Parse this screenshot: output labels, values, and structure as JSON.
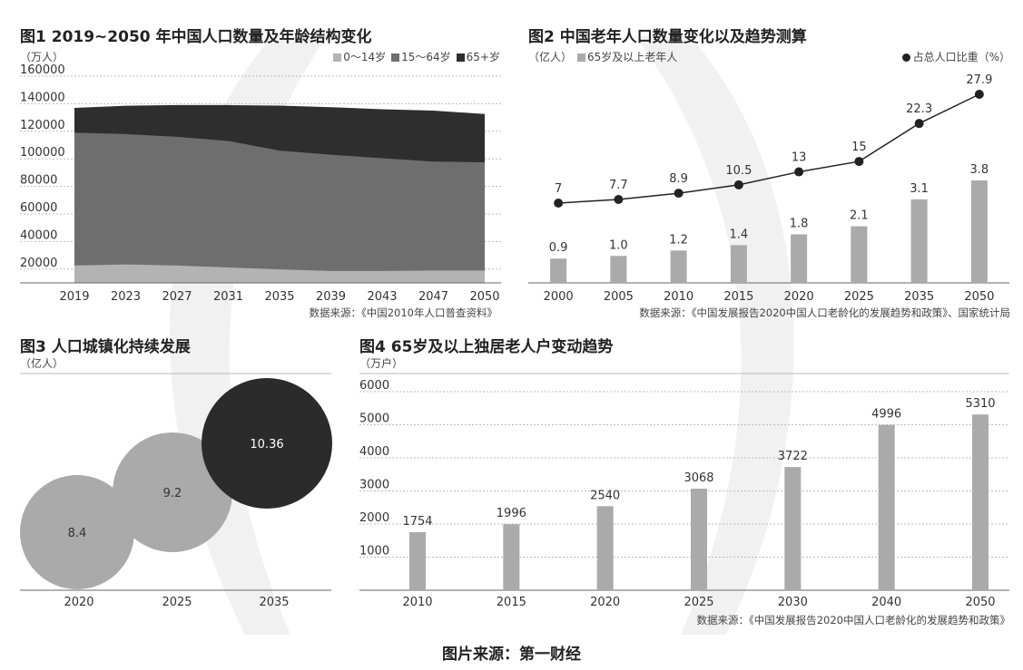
{
  "page": {
    "credit": "图片来源：第一财经"
  },
  "chart_data": [
    {
      "id": "fig1",
      "type": "area",
      "title": "图1 2019~2050 年中国人口数量及年龄结构变化",
      "unit": "（万人）",
      "legend_position": "top-right",
      "x": [
        "2019",
        "2023",
        "2027",
        "2031",
        "2035",
        "2039",
        "2043",
        "2047",
        "2050"
      ],
      "y_ticks": [
        "160000",
        "140000",
        "120000",
        "100000",
        "80000",
        "60000",
        "40000",
        "20000"
      ],
      "ylim": [
        10000,
        160000
      ],
      "series": [
        {
          "name": "0～14岁",
          "color": "#b3b3b3",
          "values": [
            22600,
            23400,
            22600,
            21200,
            19800,
            18600,
            18600,
            19000,
            19000
          ]
        },
        {
          "name": "15～64岁",
          "color": "#6e6e6e",
          "values": [
            119000,
            118000,
            116000,
            113000,
            106000,
            103000,
            100500,
            98000,
            97500
          ]
        },
        {
          "name": "65+岁",
          "color": "#2e2e2e",
          "values": [
            137000,
            138500,
            139000,
            139000,
            138600,
            137500,
            136000,
            135000,
            132500
          ]
        }
      ],
      "source": "数据来源：《中国2010年人口普查资料》"
    },
    {
      "id": "fig2",
      "type": "bar",
      "title": "图2 中国老年人口数量变化以及趋势测算",
      "unit": "（亿人）",
      "legend_bar": "65岁及以上老年人",
      "legend_line": "占总人口比重（%）",
      "legend_position": "top",
      "categories": [
        "2000",
        "2005",
        "2010",
        "2015",
        "2020",
        "2025",
        "2035",
        "2050"
      ],
      "bar_values": [
        0.9,
        1.0,
        1.2,
        1.4,
        1.8,
        2.1,
        3.1,
        3.8
      ],
      "bar_labels": [
        "0.9",
        "1.0",
        "1.2",
        "1.4",
        "1.8",
        "2.1",
        "3.1",
        "3.8"
      ],
      "line_values": [
        7,
        7.7,
        8.9,
        10.5,
        13,
        15,
        22.3,
        27.9
      ],
      "line_labels": [
        "7",
        "7.7",
        "8.9",
        "10.5",
        "13",
        "15",
        "22.3",
        "27.9"
      ],
      "bar_color": "#aaaaaa",
      "line_color": "#222222",
      "source": "数据来源：《中国发展报告2020中国人口老龄化的发展趋势和政策》、国家统计局"
    },
    {
      "id": "fig3",
      "type": "bubble",
      "title": "图3 人口城镇化持续发展",
      "unit": "（亿人）",
      "categories": [
        "2020",
        "2025",
        "2035"
      ],
      "values": [
        8.4,
        9.2,
        10.36
      ],
      "labels": [
        "8.4",
        "9.2",
        "10.36"
      ],
      "colors": [
        "#aaaaaa",
        "#aaaaaa",
        "#2b2b2b"
      ]
    },
    {
      "id": "fig4",
      "type": "bar",
      "title": "图4 65岁及以上独居老人户变动趋势",
      "unit": "（万户）",
      "categories": [
        "2010",
        "2015",
        "2020",
        "2025",
        "2030",
        "2040",
        "2050"
      ],
      "values": [
        1754,
        1996,
        2540,
        3068,
        3722,
        4996,
        5310
      ],
      "labels": [
        "1754",
        "1996",
        "2540",
        "3068",
        "3722",
        "4996",
        "5310"
      ],
      "y_ticks": [
        "6000",
        "5000",
        "4000",
        "3000",
        "2000",
        "1000"
      ],
      "ylim": [
        0,
        6000
      ],
      "bar_color": "#aaaaaa",
      "source": "数据来源：《中国发展报告2020中国人口老龄化的发展趋势和政策》"
    }
  ]
}
